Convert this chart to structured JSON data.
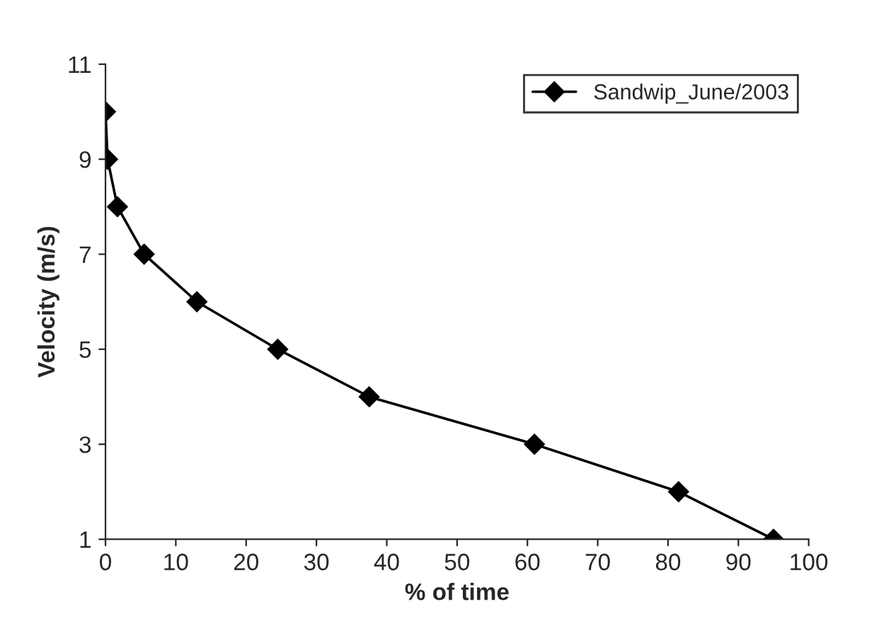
{
  "chart_data": {
    "type": "line",
    "xlabel": "% of time",
    "ylabel": "Velocity (m/s)",
    "series": [
      {
        "name": "Sandwip_June/2003",
        "color": "#000000",
        "x": [
          0,
          0.3,
          1.7,
          5.5,
          13,
          24.5,
          37.5,
          61,
          81.5,
          95
        ],
        "values": [
          10,
          9,
          8,
          7,
          6,
          5,
          4,
          3,
          2,
          1
        ]
      }
    ],
    "xlim": [
      0,
      100
    ],
    "xticks": [
      0,
      10,
      20,
      30,
      40,
      50,
      60,
      70,
      80,
      90,
      100
    ],
    "ylim": [
      1,
      11
    ],
    "yticks": [
      1,
      3,
      5,
      7,
      9,
      11
    ],
    "marker": "diamond",
    "line_style": "solid",
    "legend": "top right",
    "grid": false
  }
}
